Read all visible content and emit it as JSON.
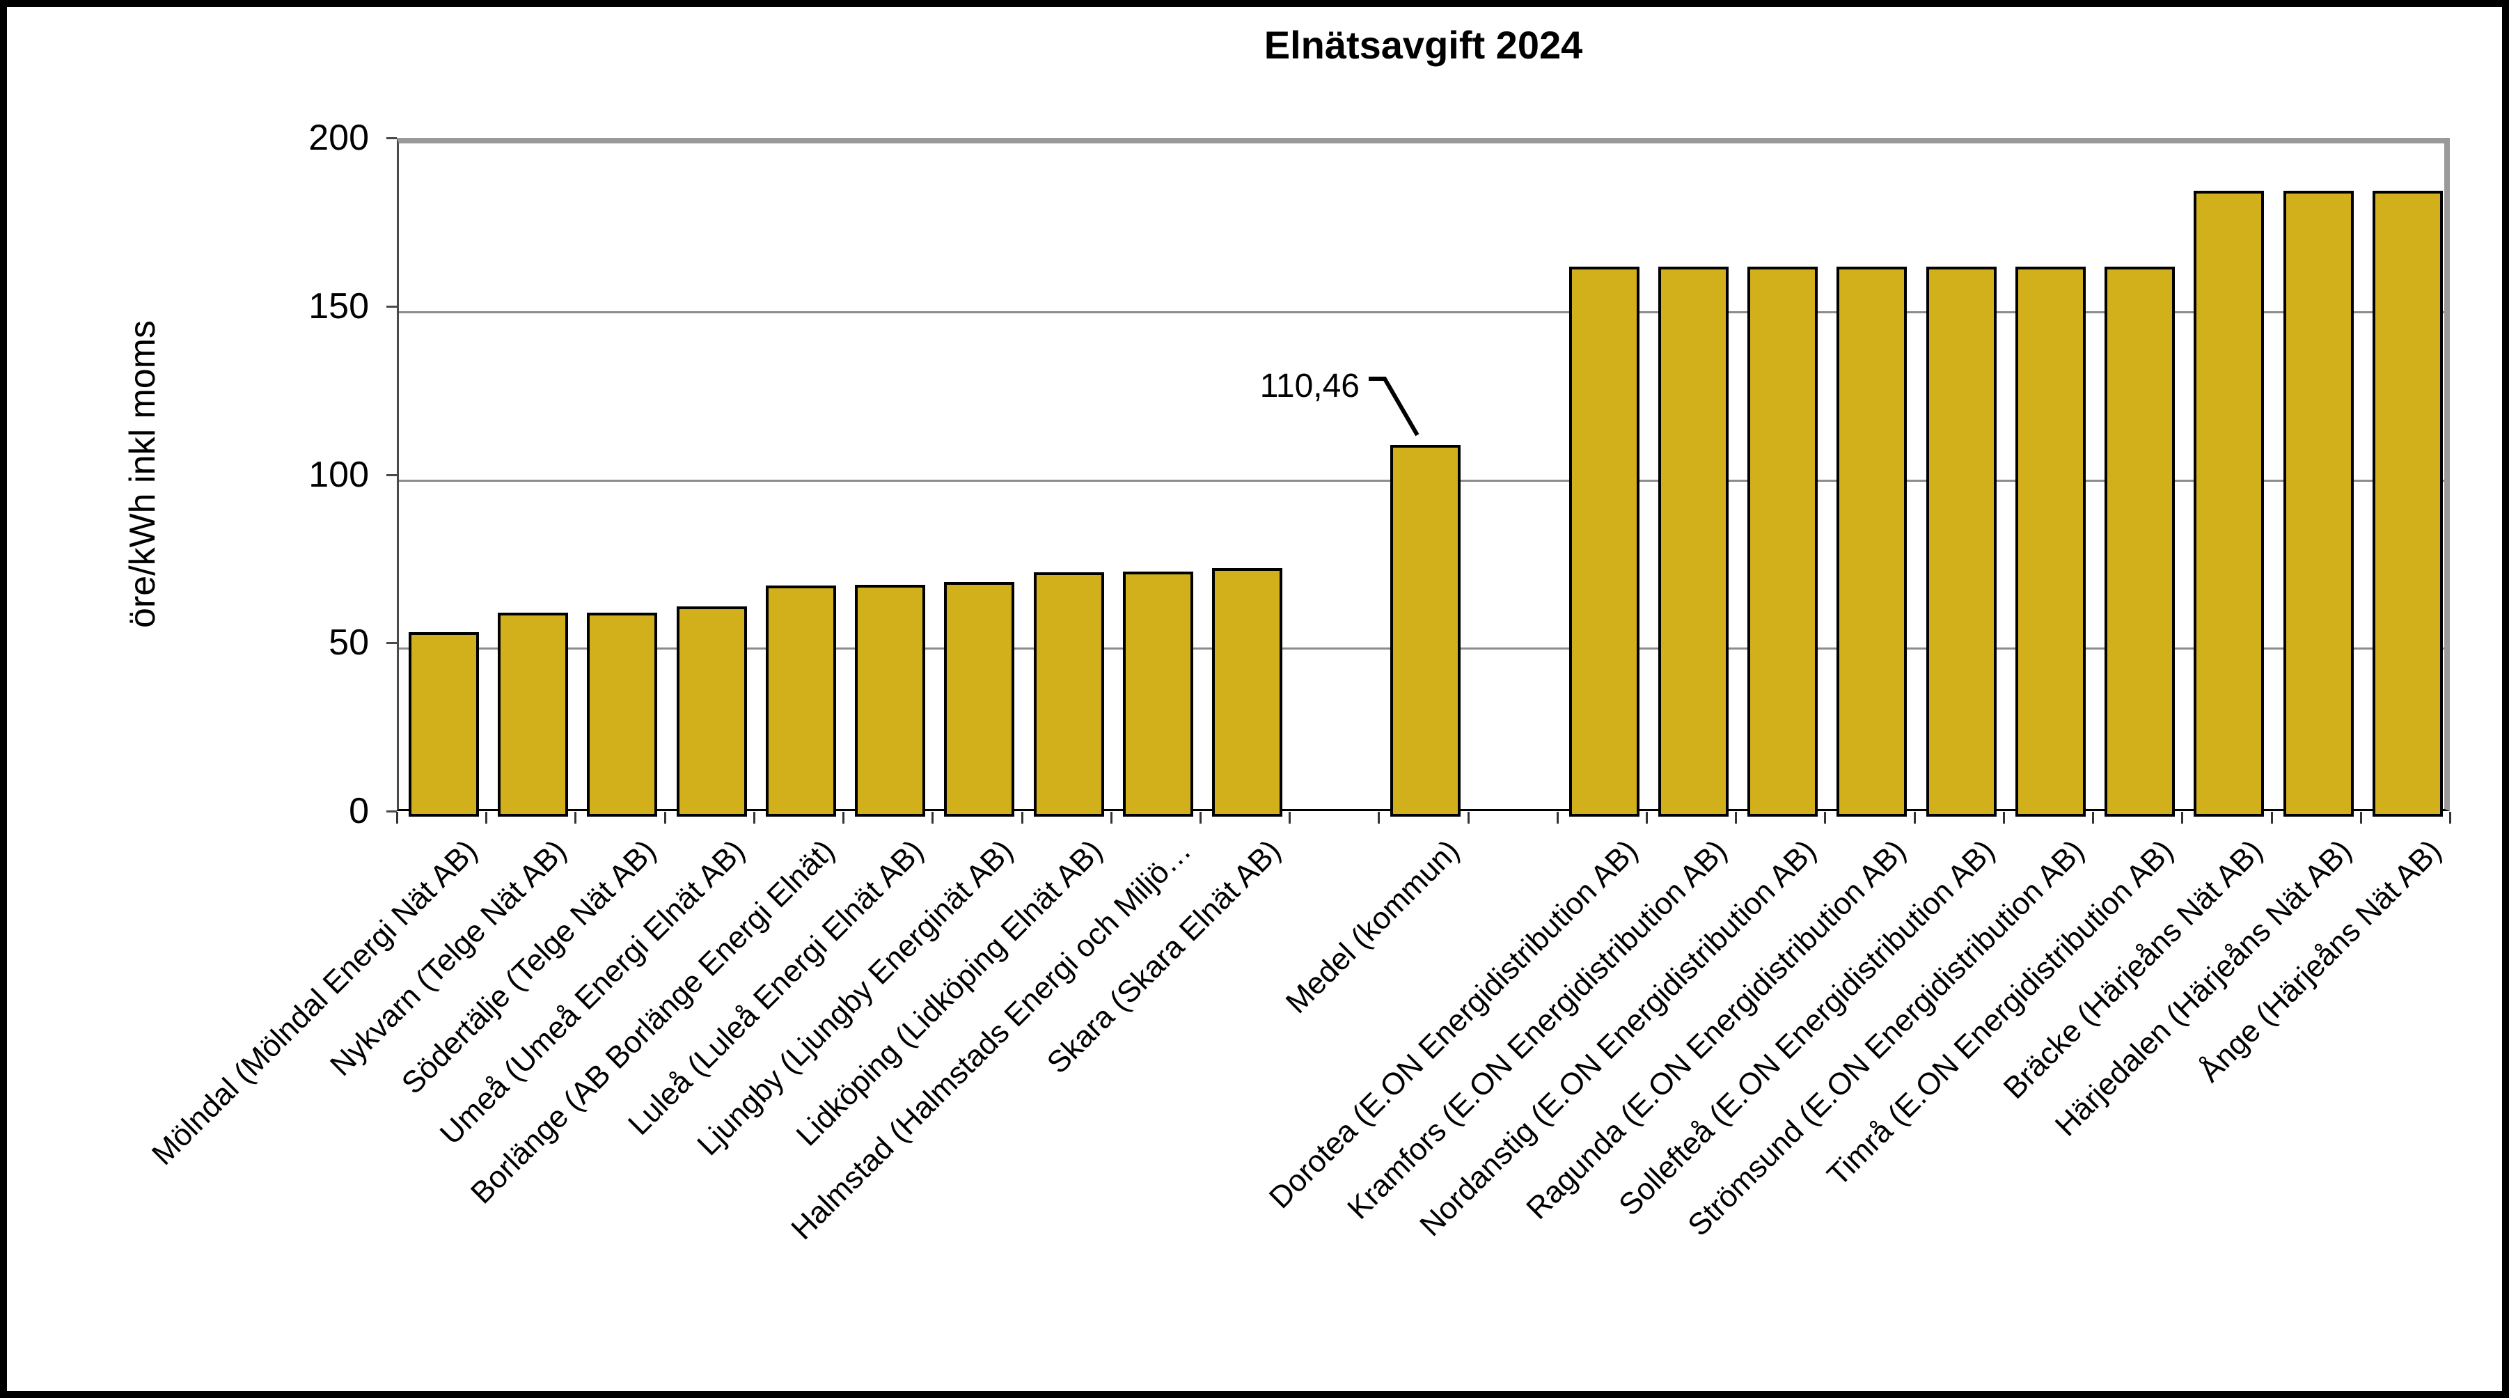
{
  "window": {
    "background": "#ffffff",
    "frame_border_color": "#000000"
  },
  "chart_data": {
    "type": "bar",
    "title": "Elnätsavgift 2024",
    "xlabel": "",
    "ylabel": "öre/kWh inkl moms",
    "ylim": [
      0,
      200
    ],
    "yticks": [
      0,
      50,
      100,
      150,
      200
    ],
    "grid": "horizontal-gridlines at 50,100,150",
    "legend": "none",
    "bar_color": "#d2b01c",
    "bar_border_color": "#000000",
    "categories": [
      "Mölndal (Mölndal Energi Nät AB)",
      "Nykvarn (Telge Nät AB)",
      "Södertälje (Telge Nät AB)",
      "Umeå (Umeå Energi Elnät AB)",
      "Borlänge (AB Borlänge Energi Elnät)",
      "Luleå (Luleå Energi Elnät AB)",
      "Ljungby (Ljungby Energinät AB)",
      "Lidköping (Lidköping Elnät AB)",
      "Halmstad (Halmstads Energi och Miljö…",
      "Skara (Skara Elnät AB)",
      "Medel (kommun)",
      "Dorotea (E.ON Energidistribution AB)",
      "Kramfors (E.ON Energidistribution AB)",
      "Nordanstig (E.ON Energidistribution AB)",
      "Ragunda (E.ON Energidistribution AB)",
      "Sollefteå (E.ON Energidistribution AB)",
      "Strömsund (E.ON Energidistribution AB)",
      "Timrå (E.ON Energidistribution AB)",
      "Bräcke (Härjeåns Nät AB)",
      "Härjedalen (Härjeåns Nät AB)",
      "Ånge (Härjeåns Nät AB)"
    ],
    "values": [
      54.8,
      60.5,
      60.5,
      62.4,
      68.6,
      68.8,
      69.6,
      72.5,
      72.7,
      73.8,
      110.46,
      163.3,
      163.3,
      163.3,
      163.3,
      163.3,
      163.3,
      163.3,
      186,
      186,
      186
    ],
    "slots": [
      0,
      1,
      2,
      3,
      4,
      5,
      6,
      7,
      8,
      9,
      11,
      13,
      14,
      15,
      16,
      17,
      18,
      19,
      20,
      21,
      22
    ],
    "total_slots": 23,
    "annotation": {
      "text": "110,46",
      "value": 110.46,
      "target_category": "Medel (kommun)"
    }
  }
}
